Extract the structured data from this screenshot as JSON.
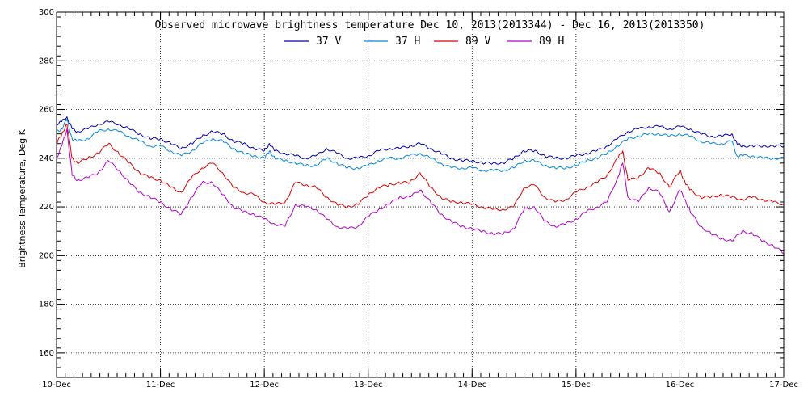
{
  "chart_data": {
    "type": "line",
    "title": "Observed microwave brightness temperature Dec 10, 2013(2013344) - Dec 16, 2013(2013350)",
    "xlabel": "",
    "ylabel": "Brightness Temperature, Deg K",
    "ylim": [
      150,
      300
    ],
    "y_ticks": [
      160,
      180,
      200,
      220,
      240,
      260,
      280,
      300
    ],
    "xlim": [
      0,
      7
    ],
    "x_ticks": [
      0,
      1,
      2,
      3,
      4,
      5,
      6,
      7
    ],
    "x_tick_labels": [
      "10-Dec",
      "11-Dec",
      "12-Dec",
      "13-Dec",
      "14-Dec",
      "15-Dec",
      "16-Dec",
      "17-Dec"
    ],
    "grid": true,
    "legend_position": "top-center",
    "series": [
      {
        "name": "37 V",
        "color": "#0000b0",
        "x": [
          0,
          0.05,
          0.1,
          0.15,
          0.2,
          0.3,
          0.4,
          0.5,
          0.6,
          0.7,
          0.8,
          0.9,
          1.0,
          1.1,
          1.2,
          1.3,
          1.4,
          1.5,
          1.6,
          1.7,
          1.8,
          1.9,
          2.0,
          2.05,
          2.1,
          2.2,
          2.3,
          2.4,
          2.5,
          2.6,
          2.7,
          2.8,
          2.9,
          3.0,
          3.1,
          3.2,
          3.3,
          3.4,
          3.5,
          3.6,
          3.7,
          3.8,
          3.9,
          4.0,
          4.1,
          4.2,
          4.3,
          4.4,
          4.5,
          4.6,
          4.7,
          4.8,
          4.9,
          5.0,
          5.1,
          5.2,
          5.3,
          5.4,
          5.5,
          5.6,
          5.7,
          5.8,
          5.9,
          6.0,
          6.1,
          6.2,
          6.3,
          6.4,
          6.5,
          6.55,
          6.6,
          6.7,
          6.8,
          6.9,
          7.0
        ],
        "values": [
          254,
          255,
          257,
          252,
          251,
          252,
          254,
          255,
          254,
          252,
          250,
          248,
          248,
          246,
          244,
          246,
          249,
          251,
          250,
          247,
          246,
          244,
          243,
          246,
          243,
          242,
          241,
          240,
          241,
          244,
          242,
          240,
          240,
          241,
          243,
          244,
          244,
          245,
          246,
          244,
          242,
          240,
          239,
          239,
          238,
          238,
          238,
          240,
          243,
          243,
          241,
          240,
          240,
          241,
          242,
          243,
          245,
          248,
          251,
          252,
          253,
          253,
          252,
          253,
          252,
          250,
          249,
          249,
          250,
          246,
          245,
          245,
          245,
          245,
          245
        ]
      },
      {
        "name": "37 H",
        "color": "#0088d8",
        "x": [
          0,
          0.05,
          0.1,
          0.15,
          0.2,
          0.3,
          0.4,
          0.5,
          0.6,
          0.7,
          0.8,
          0.9,
          1.0,
          1.1,
          1.2,
          1.3,
          1.4,
          1.5,
          1.6,
          1.7,
          1.8,
          1.9,
          2.0,
          2.05,
          2.1,
          2.2,
          2.3,
          2.4,
          2.5,
          2.6,
          2.7,
          2.8,
          2.9,
          3.0,
          3.1,
          3.2,
          3.3,
          3.4,
          3.5,
          3.6,
          3.7,
          3.8,
          3.9,
          4.0,
          4.1,
          4.2,
          4.3,
          4.4,
          4.5,
          4.6,
          4.7,
          4.8,
          4.9,
          5.0,
          5.1,
          5.2,
          5.3,
          5.4,
          5.5,
          5.6,
          5.7,
          5.8,
          5.9,
          6.0,
          6.1,
          6.2,
          6.3,
          6.4,
          6.5,
          6.55,
          6.6,
          6.7,
          6.8,
          6.9,
          7.0
        ],
        "values": [
          251,
          252,
          256,
          248,
          247,
          248,
          251,
          252,
          251,
          249,
          247,
          245,
          245,
          243,
          241,
          243,
          246,
          248,
          247,
          244,
          242,
          241,
          240,
          243,
          240,
          239,
          238,
          237,
          237,
          240,
          238,
          236,
          236,
          237,
          239,
          240,
          240,
          241,
          242,
          240,
          238,
          236,
          236,
          236,
          235,
          235,
          235,
          236,
          239,
          239,
          237,
          236,
          236,
          237,
          239,
          240,
          242,
          245,
          248,
          249,
          250,
          250,
          249,
          250,
          249,
          247,
          246,
          246,
          247,
          241,
          241,
          241,
          240,
          240,
          240
        ]
      },
      {
        "name": "89 V",
        "color": "#d80000",
        "x": [
          0,
          0.05,
          0.1,
          0.15,
          0.2,
          0.3,
          0.4,
          0.5,
          0.6,
          0.7,
          0.8,
          0.9,
          1.0,
          1.1,
          1.2,
          1.3,
          1.4,
          1.5,
          1.6,
          1.7,
          1.8,
          1.9,
          2.0,
          2.1,
          2.2,
          2.3,
          2.4,
          2.5,
          2.6,
          2.7,
          2.8,
          2.9,
          3.0,
          3.1,
          3.2,
          3.3,
          3.4,
          3.5,
          3.6,
          3.7,
          3.8,
          3.9,
          4.0,
          4.1,
          4.2,
          4.3,
          4.4,
          4.5,
          4.6,
          4.7,
          4.8,
          4.9,
          5.0,
          5.1,
          5.2,
          5.3,
          5.4,
          5.45,
          5.5,
          5.6,
          5.7,
          5.8,
          5.9,
          6.0,
          6.05,
          6.1,
          6.2,
          6.3,
          6.4,
          6.5,
          6.6,
          6.7,
          6.8,
          6.9,
          7.0
        ],
        "values": [
          246,
          250,
          254,
          240,
          238,
          240,
          242,
          246,
          242,
          238,
          234,
          232,
          231,
          228,
          226,
          232,
          236,
          238,
          234,
          228,
          226,
          225,
          222,
          221,
          222,
          230,
          229,
          228,
          224,
          221,
          220,
          221,
          225,
          228,
          229,
          230,
          230,
          234,
          228,
          224,
          222,
          222,
          221,
          220,
          219,
          219,
          220,
          228,
          229,
          224,
          222,
          223,
          226,
          228,
          230,
          233,
          240,
          243,
          231,
          232,
          236,
          234,
          228,
          235,
          230,
          227,
          224,
          224,
          225,
          224,
          223,
          224,
          223,
          222,
          221
        ]
      },
      {
        "name": "89 H",
        "color": "#b000c8",
        "x": [
          0,
          0.05,
          0.1,
          0.15,
          0.2,
          0.3,
          0.4,
          0.5,
          0.6,
          0.7,
          0.8,
          0.9,
          1.0,
          1.1,
          1.2,
          1.3,
          1.4,
          1.5,
          1.6,
          1.7,
          1.8,
          1.9,
          2.0,
          2.1,
          2.2,
          2.3,
          2.4,
          2.5,
          2.6,
          2.7,
          2.8,
          2.9,
          3.0,
          3.1,
          3.2,
          3.3,
          3.4,
          3.5,
          3.6,
          3.7,
          3.8,
          3.9,
          4.0,
          4.1,
          4.2,
          4.3,
          4.4,
          4.5,
          4.6,
          4.7,
          4.8,
          4.9,
          5.0,
          5.1,
          5.2,
          5.3,
          5.4,
          5.45,
          5.5,
          5.6,
          5.7,
          5.8,
          5.9,
          6.0,
          6.05,
          6.1,
          6.2,
          6.3,
          6.4,
          6.5,
          6.6,
          6.7,
          6.8,
          6.9,
          7.0
        ],
        "values": [
          240,
          245,
          252,
          233,
          231,
          232,
          234,
          239,
          235,
          230,
          226,
          224,
          222,
          219,
          217,
          224,
          230,
          230,
          225,
          220,
          218,
          217,
          215,
          213,
          212,
          221,
          220,
          219,
          215,
          212,
          211,
          212,
          216,
          219,
          221,
          224,
          224,
          227,
          222,
          217,
          214,
          212,
          211,
          210,
          209,
          209,
          211,
          219,
          220,
          214,
          212,
          213,
          215,
          218,
          220,
          222,
          232,
          238,
          224,
          222,
          228,
          226,
          218,
          227,
          223,
          218,
          212,
          209,
          207,
          206,
          210,
          209,
          206,
          204,
          201
        ]
      }
    ]
  }
}
